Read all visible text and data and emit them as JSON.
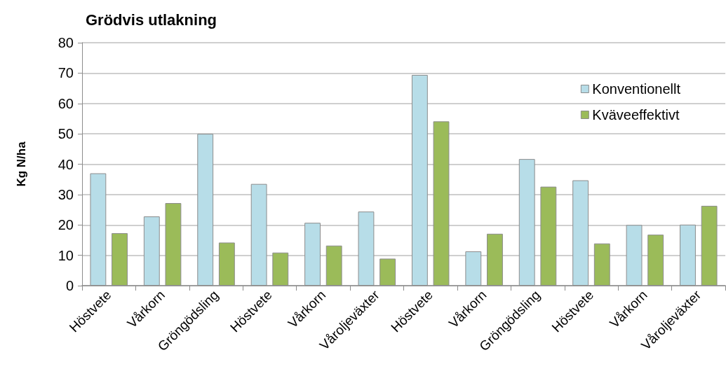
{
  "chart_data": {
    "type": "bar",
    "title": "Grödvis utlakning",
    "ylabel": "Kg N/ha",
    "categories": [
      "Höstvete",
      "Vårkorn",
      "Gröngödsling",
      "Höstvete",
      "Vårkorn",
      "Våroljeväxter",
      "Höstvete",
      "Vårkorn",
      "Gröngödsling",
      "Höstvete",
      "Vårkorn",
      "Våroljeväxter"
    ],
    "series": [
      {
        "name": "Konventionellt",
        "color": "#b7dde8",
        "values": [
          37,
          22.8,
          50,
          33.5,
          20.7,
          24.4,
          69.4,
          11.3,
          41.7,
          34.7,
          20,
          20.1
        ]
      },
      {
        "name": "Kväveeffektivt",
        "color": "#9bbb59",
        "values": [
          17.3,
          27.2,
          14.2,
          10.9,
          13.2,
          8.9,
          54.1,
          17.1,
          32.6,
          13.9,
          16.8,
          26.3
        ]
      }
    ],
    "ylim": [
      0,
      80
    ],
    "yticks": [
      0,
      10,
      20,
      30,
      40,
      50,
      60,
      70,
      80
    ],
    "grid": "y",
    "legend": "top right"
  }
}
